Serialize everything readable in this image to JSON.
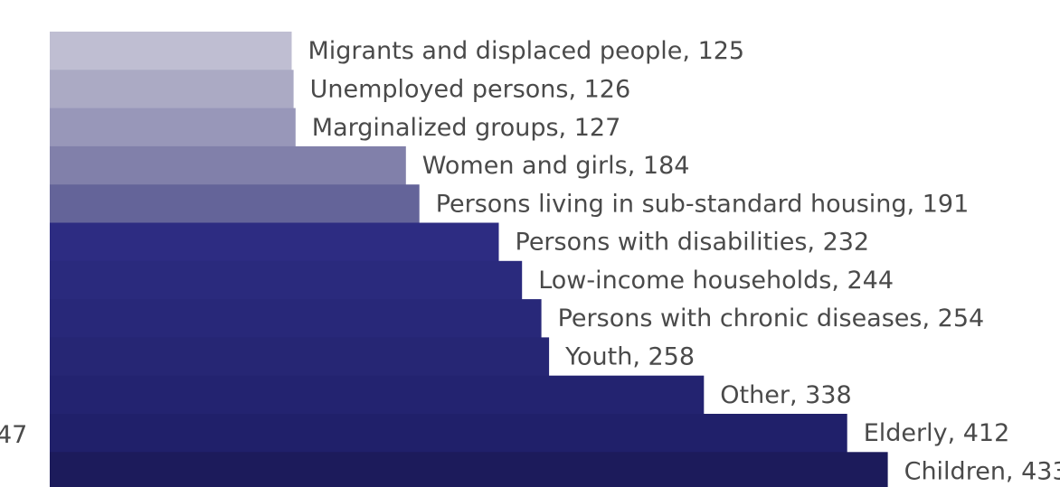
{
  "chart_data": {
    "type": "bar",
    "orientation": "horizontal",
    "title": "",
    "xlabel": "",
    "ylabel": "",
    "grid": false,
    "legend": "none",
    "cropped_edge_label": "47",
    "categories": [
      "Migrants and displaced people",
      "Unemployed persons",
      "Marginalized groups",
      "Women and girls",
      "Persons living in sub-standard housing",
      "Persons with disabilities",
      "Low-income households",
      "Persons with chronic diseases",
      "Youth",
      "Other",
      "Elderly",
      "Children"
    ],
    "values": [
      125,
      126,
      127,
      184,
      191,
      232,
      244,
      254,
      258,
      338,
      412,
      433
    ],
    "labels": [
      "Migrants and displaced people, 125",
      "Unemployed persons, 126",
      "Marginalized groups, 127",
      "Women and girls, 184",
      "Persons living in sub-standard housing, 191",
      "Persons with disabilities, 232",
      "Low-income households, 244",
      "Persons with chronic diseases, 254",
      "Youth, 258",
      "Other, 338",
      "Elderly, 412",
      "Children, 433"
    ],
    "colors": [
      "#bfbed2",
      "#abaac4",
      "#9897b9",
      "#8180aa",
      "#646499",
      "#2d2c82",
      "#2a2a7d",
      "#282879",
      "#262674",
      "#232370",
      "#20206a",
      "#1c1b5b"
    ]
  }
}
